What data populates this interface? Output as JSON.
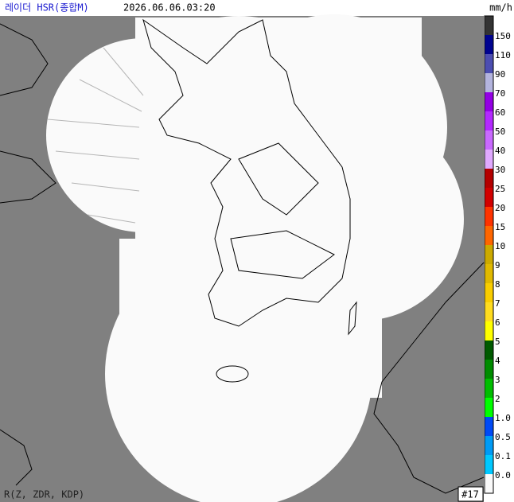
{
  "header": {
    "title": "레이더 HSR(종합M)",
    "timestamp": "2026.06.06.03:20",
    "unit": "mm/h"
  },
  "legend": {
    "labels": [
      "150",
      "110",
      "90",
      "70",
      "60",
      "50",
      "40",
      "30",
      "25",
      "20",
      "15",
      "10",
      "9",
      "8",
      "7",
      "6",
      "5",
      "4",
      "3",
      "2",
      "1.0",
      "0.5",
      "0.1",
      "0.0"
    ],
    "colors": [
      "#333333",
      "#000390",
      "#4c4eb1",
      "#b3b4de",
      "#9300e4",
      "#b329ff",
      "#c969ff",
      "#e0a9ff",
      "#b40000",
      "#d20000",
      "#ff3300",
      "#ff6600",
      "#ccaa00",
      "#e0b900",
      "#f9cd00",
      "#ffdc1f",
      "#ffff00",
      "#005a00",
      "#008c00",
      "#00be00",
      "#00ff00",
      "#004af5",
      "#009bf5",
      "#00c8ff",
      "#fafafa"
    ]
  },
  "footer": {
    "method": "R(Z, ZDR, KDP)",
    "count": "#17"
  }
}
